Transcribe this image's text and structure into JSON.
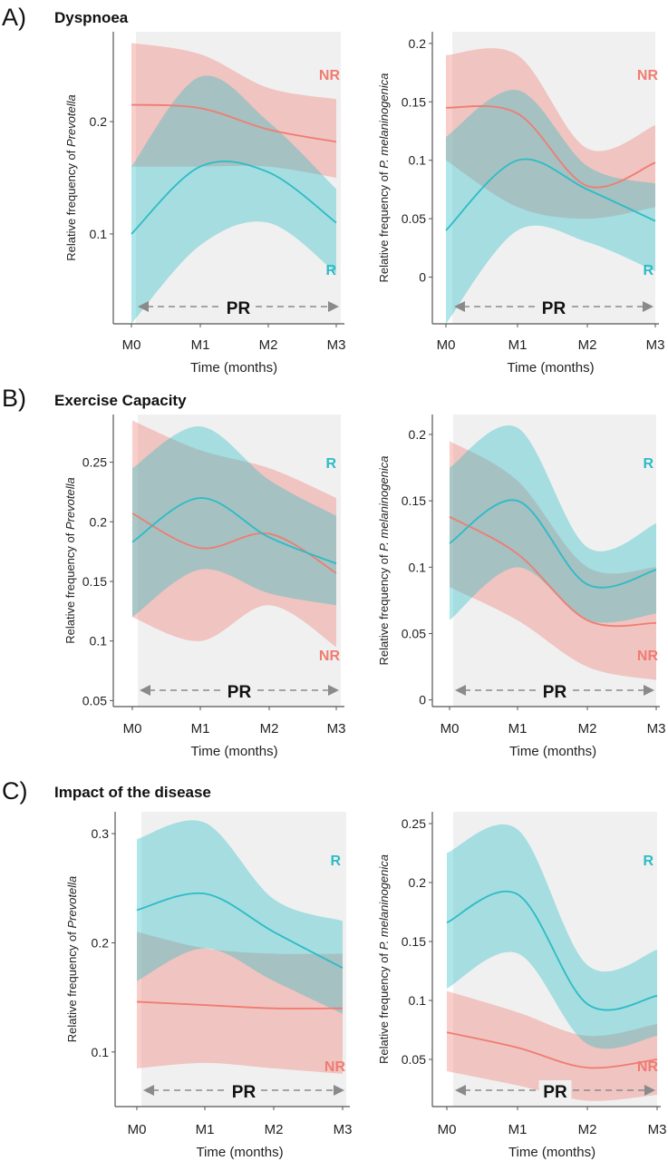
{
  "sections": [
    {
      "tag": "A)",
      "title": "Dyspnoea"
    },
    {
      "tag": "B)",
      "title": "Exercise Capacity"
    },
    {
      "tag": "C)",
      "title": "Impact of the disease"
    }
  ],
  "common": {
    "xlabel": "Time (months)",
    "x_ticks": [
      "M0",
      "M1",
      "M2",
      "M3"
    ],
    "pr_label": "PR",
    "group_labels": {
      "responders": "R",
      "non_responders": "NR"
    },
    "ylabel_prefix": "Relative frequency of "
  },
  "colors": {
    "responders": "#2bbcc6",
    "non_responders": "#f07c72",
    "shading": "#f0f0f0",
    "axis": "#555555",
    "pr_arrow": "#8a8a8a"
  },
  "chart_data": [
    {
      "type": "line",
      "panel": "A-left",
      "ylabel_taxon": "Prevotella",
      "x": [
        "M0",
        "M1",
        "M2",
        "M3"
      ],
      "ylim": [
        0.02,
        0.28
      ],
      "yticks": [
        0.1,
        0.2
      ],
      "series": [
        {
          "name": "R",
          "values": [
            0.1,
            0.16,
            0.155,
            0.11
          ],
          "lower": [
            0.02,
            0.09,
            0.11,
            0.065
          ],
          "upper": [
            0.16,
            0.24,
            0.2,
            0.14
          ]
        },
        {
          "name": "NR",
          "values": [
            0.215,
            0.212,
            0.193,
            0.182
          ],
          "lower": [
            0.16,
            0.16,
            0.16,
            0.15
          ],
          "upper": [
            0.27,
            0.26,
            0.23,
            0.22
          ]
        }
      ]
    },
    {
      "type": "line",
      "panel": "A-right",
      "ylabel_taxon": "P. melaninogenica",
      "x": [
        "M0",
        "M1",
        "M2",
        "M3"
      ],
      "ylim": [
        -0.04,
        0.21
      ],
      "yticks": [
        0.0,
        0.05,
        0.1,
        0.15,
        0.2
      ],
      "series": [
        {
          "name": "R",
          "values": [
            0.04,
            0.1,
            0.075,
            0.048
          ],
          "lower": [
            -0.04,
            0.04,
            0.03,
            0.005
          ],
          "upper": [
            0.12,
            0.16,
            0.095,
            0.08
          ]
        },
        {
          "name": "NR",
          "values": [
            0.145,
            0.14,
            0.078,
            0.098
          ],
          "lower": [
            0.1,
            0.06,
            0.05,
            0.06
          ],
          "upper": [
            0.19,
            0.19,
            0.11,
            0.13
          ]
        }
      ]
    },
    {
      "type": "line",
      "panel": "B-left",
      "ylabel_taxon": "Prevotella",
      "x": [
        "M0",
        "M1",
        "M2",
        "M3"
      ],
      "ylim": [
        0.045,
        0.29
      ],
      "yticks": [
        0.05,
        0.1,
        0.15,
        0.2,
        0.25
      ],
      "series": [
        {
          "name": "R",
          "values": [
            0.183,
            0.22,
            0.187,
            0.165
          ],
          "lower": [
            0.12,
            0.16,
            0.14,
            0.13
          ],
          "upper": [
            0.245,
            0.28,
            0.235,
            0.205
          ]
        },
        {
          "name": "NR",
          "values": [
            0.207,
            0.178,
            0.19,
            0.157
          ],
          "lower": [
            0.12,
            0.1,
            0.13,
            0.095
          ],
          "upper": [
            0.285,
            0.26,
            0.245,
            0.22
          ]
        }
      ]
    },
    {
      "type": "line",
      "panel": "B-right",
      "ylabel_taxon": "P. melaninogenica",
      "x": [
        "M0",
        "M1",
        "M2",
        "M3"
      ],
      "ylim": [
        -0.005,
        0.215
      ],
      "yticks": [
        0.0,
        0.05,
        0.1,
        0.15,
        0.2
      ],
      "series": [
        {
          "name": "R",
          "values": [
            0.118,
            0.15,
            0.087,
            0.098
          ],
          "lower": [
            0.06,
            0.1,
            0.06,
            0.065
          ],
          "upper": [
            0.175,
            0.205,
            0.115,
            0.133
          ]
        },
        {
          "name": "NR",
          "values": [
            0.138,
            0.11,
            0.06,
            0.058
          ],
          "lower": [
            0.085,
            0.06,
            0.025,
            0.015
          ],
          "upper": [
            0.195,
            0.165,
            0.1,
            0.1
          ]
        }
      ]
    },
    {
      "type": "line",
      "panel": "C-left",
      "ylabel_taxon": "Prevotella",
      "x": [
        "M0",
        "M1",
        "M2",
        "M3"
      ],
      "ylim": [
        0.05,
        0.32
      ],
      "yticks": [
        0.1,
        0.2,
        0.3
      ],
      "series": [
        {
          "name": "R",
          "values": [
            0.23,
            0.245,
            0.21,
            0.177
          ],
          "lower": [
            0.165,
            0.195,
            0.165,
            0.135
          ],
          "upper": [
            0.295,
            0.31,
            0.24,
            0.22
          ]
        },
        {
          "name": "NR",
          "values": [
            0.146,
            0.143,
            0.14,
            0.14
          ],
          "lower": [
            0.085,
            0.09,
            0.085,
            0.08
          ],
          "upper": [
            0.21,
            0.195,
            0.19,
            0.19
          ]
        }
      ]
    },
    {
      "type": "line",
      "panel": "C-right",
      "ylabel_taxon": "P. melaninogenica",
      "x": [
        "M0",
        "M1",
        "M2",
        "M3"
      ],
      "ylim": [
        0.01,
        0.26
      ],
      "yticks": [
        0.05,
        0.1,
        0.15,
        0.2,
        0.25
      ],
      "series": [
        {
          "name": "R",
          "values": [
            0.166,
            0.19,
            0.097,
            0.104
          ],
          "lower": [
            0.11,
            0.14,
            0.063,
            0.07
          ],
          "upper": [
            0.225,
            0.245,
            0.13,
            0.143
          ]
        },
        {
          "name": "NR",
          "values": [
            0.073,
            0.06,
            0.043,
            0.05
          ],
          "lower": [
            0.04,
            0.028,
            0.015,
            0.02
          ],
          "upper": [
            0.108,
            0.09,
            0.07,
            0.08
          ]
        }
      ]
    }
  ]
}
